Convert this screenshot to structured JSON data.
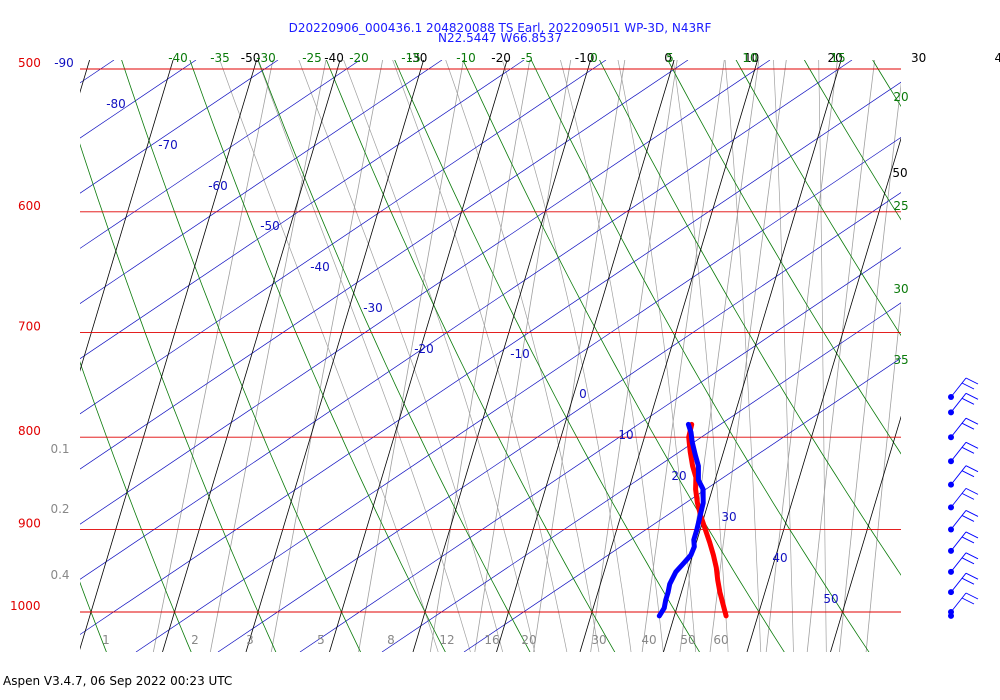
{
  "header": {
    "title_line1": "D20220906_000436.1 204820088 TS Earl, 20220905I1 WP-3D, N43RF",
    "title_line2": "N22.5447 W66.8537"
  },
  "footer": {
    "text": "Aspen V3.4.7, 06 Sep 2022  00:23 UTC"
  },
  "colors": {
    "isobar": "#e00000",
    "isotherm": "#000000",
    "dry_adiabat": "#0a7a0a",
    "moist_adiabat": "#1010c0",
    "mixing_ratio": "#a0a0a0",
    "temperature": "#ff0000",
    "dewpoint": "#0000ff",
    "wind": "#0000ff"
  },
  "chart_data": {
    "type": "skew-t",
    "pressure_range_hpa": [
      500,
      1050
    ],
    "temperature_range_c": [
      -50,
      40
    ],
    "isobars_hpa": [
      500,
      600,
      700,
      800,
      900,
      1000
    ],
    "isobar_labels": [
      "500",
      "600",
      "700",
      "800",
      "900",
      "1000"
    ],
    "isotherms_c": [
      -50,
      -40,
      -30,
      -20,
      -10,
      0,
      10,
      20,
      30,
      40,
      50
    ],
    "isotherm_labels": [
      "-50",
      "-40",
      "-30",
      "-20",
      "-10",
      "0",
      "10",
      "20",
      "30",
      "40",
      "50"
    ],
    "dry_adiabat_labels_top": [
      "-40",
      "-35",
      "-30",
      "-25",
      "-20",
      "-15",
      "-10",
      "-5",
      "0",
      "5",
      "10",
      "15"
    ],
    "dry_adiabat_labels_right": [
      "20",
      "25",
      "30",
      "35"
    ],
    "moist_adiabat_labels": [
      "-90",
      "-80",
      "-70",
      "-60",
      "-50",
      "-40",
      "-30",
      "-20",
      "-10",
      "0",
      "10",
      "20",
      "30",
      "40",
      "50"
    ],
    "mixing_ratio_labels": [
      "0.1",
      "0.2",
      "0.4",
      "1",
      "2",
      "3",
      "5",
      "8",
      "12",
      "16",
      "20",
      "30",
      "40",
      "50",
      "60"
    ],
    "series": [
      {
        "type": "temperature",
        "points": [
          {
            "p": 1005,
            "t": 26.2
          },
          {
            "p": 990,
            "t": 25.4
          },
          {
            "p": 975,
            "t": 24.6
          },
          {
            "p": 960,
            "t": 23.9
          },
          {
            "p": 945,
            "t": 23.3
          },
          {
            "p": 930,
            "t": 22.5
          },
          {
            "p": 915,
            "t": 21.6
          },
          {
            "p": 900,
            "t": 20.6
          },
          {
            "p": 885,
            "t": 19.6
          },
          {
            "p": 870,
            "t": 18.7
          },
          {
            "p": 855,
            "t": 18.0
          },
          {
            "p": 842,
            "t": 17.6
          },
          {
            "p": 830,
            "t": 16.8
          },
          {
            "p": 815,
            "t": 16.0
          },
          {
            "p": 800,
            "t": 15.3
          },
          {
            "p": 787,
            "t": 15.2
          }
        ]
      },
      {
        "type": "dewpoint",
        "points": [
          {
            "p": 1005,
            "t": 18.2
          },
          {
            "p": 995,
            "t": 18.5
          },
          {
            "p": 985,
            "t": 18.4
          },
          {
            "p": 975,
            "t": 18.4
          },
          {
            "p": 965,
            "t": 18.3
          },
          {
            "p": 950,
            "t": 18.6
          },
          {
            "p": 940,
            "t": 19.2
          },
          {
            "p": 930,
            "t": 19.8
          },
          {
            "p": 920,
            "t": 19.9
          },
          {
            "p": 912,
            "t": 19.6
          },
          {
            "p": 900,
            "t": 19.6
          },
          {
            "p": 885,
            "t": 19.5
          },
          {
            "p": 870,
            "t": 19.4
          },
          {
            "p": 855,
            "t": 18.9
          },
          {
            "p": 845,
            "t": 18.0
          },
          {
            "p": 830,
            "t": 17.5
          },
          {
            "p": 818,
            "t": 16.7
          },
          {
            "p": 805,
            "t": 15.9
          },
          {
            "p": 795,
            "t": 15.4
          },
          {
            "p": 787,
            "t": 14.8
          }
        ]
      }
    ],
    "wind_pressures_hpa": [
      1005,
      1000,
      975,
      950,
      925,
      900,
      875,
      850,
      825,
      800,
      775,
      760
    ]
  }
}
